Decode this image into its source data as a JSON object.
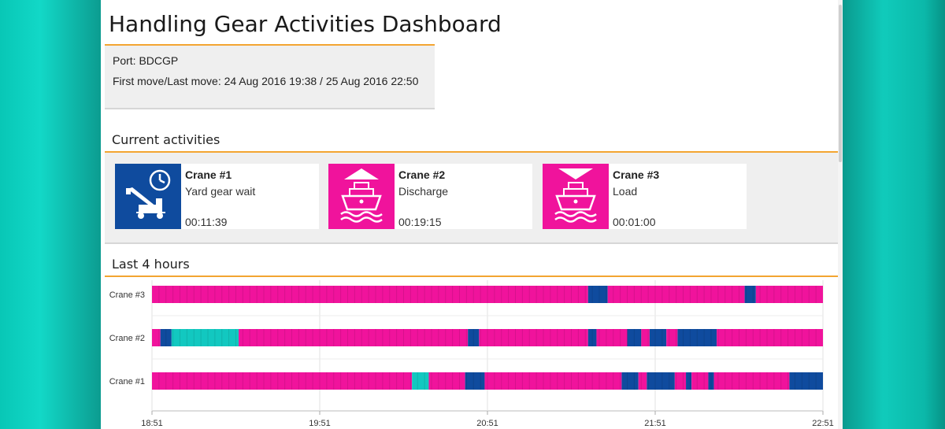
{
  "title": "Handling Gear Activities Dashboard",
  "port": {
    "line": "Port: BDCGP",
    "moves": "First move/Last move: 24 Aug 2016 19:38 / 25 Aug 2016 22:50"
  },
  "current": {
    "heading": "Current activities",
    "cards": [
      {
        "name": "Crane #1",
        "activity": "Yard gear wait",
        "elapsed": "00:11:39",
        "icon": "yard-gear-wait-icon",
        "color": "#0f4b9e"
      },
      {
        "name": "Crane #2",
        "activity": "Discharge",
        "elapsed": "00:19:15",
        "icon": "discharge-ship-icon",
        "color": "#f0139c"
      },
      {
        "name": "Crane #3",
        "activity": "Load",
        "elapsed": "00:01:00",
        "icon": "load-ship-icon",
        "color": "#f0139c"
      }
    ]
  },
  "history": {
    "heading": "Last 4 hours"
  },
  "colors": {
    "accent": "#f3a531",
    "load": "#f0139c",
    "wait": "#0f4b9e",
    "idle": "#12c8c0"
  },
  "chart_data": {
    "type": "bar",
    "orientation": "horizontal-timeline",
    "x_ticks": [
      "18:51",
      "19:51",
      "20:51",
      "21:51",
      "22:51"
    ],
    "xlim": [
      "18:51",
      "22:51"
    ],
    "grid": true,
    "rows": [
      {
        "label": "Crane #3",
        "segments": [
          {
            "start": "18:51",
            "end": "21:27",
            "kind": "load"
          },
          {
            "start": "21:27",
            "end": "21:34",
            "kind": "wait"
          },
          {
            "start": "21:34",
            "end": "22:23",
            "kind": "load"
          },
          {
            "start": "22:23",
            "end": "22:27",
            "kind": "wait"
          },
          {
            "start": "22:27",
            "end": "22:51",
            "kind": "load"
          }
        ]
      },
      {
        "label": "Crane #2",
        "segments": [
          {
            "start": "18:51",
            "end": "18:54",
            "kind": "load"
          },
          {
            "start": "18:54",
            "end": "18:58",
            "kind": "wait"
          },
          {
            "start": "18:58",
            "end": "19:22",
            "kind": "idle"
          },
          {
            "start": "19:22",
            "end": "20:44",
            "kind": "load"
          },
          {
            "start": "20:44",
            "end": "20:48",
            "kind": "wait"
          },
          {
            "start": "20:48",
            "end": "21:27",
            "kind": "load"
          },
          {
            "start": "21:27",
            "end": "21:30",
            "kind": "wait"
          },
          {
            "start": "21:30",
            "end": "21:41",
            "kind": "load"
          },
          {
            "start": "21:41",
            "end": "21:46",
            "kind": "wait"
          },
          {
            "start": "21:46",
            "end": "21:49",
            "kind": "load"
          },
          {
            "start": "21:49",
            "end": "21:55",
            "kind": "wait"
          },
          {
            "start": "21:55",
            "end": "21:59",
            "kind": "load"
          },
          {
            "start": "21:59",
            "end": "22:13",
            "kind": "wait"
          },
          {
            "start": "22:13",
            "end": "22:51",
            "kind": "load"
          }
        ]
      },
      {
        "label": "Crane #1",
        "segments": [
          {
            "start": "18:51",
            "end": "20:24",
            "kind": "load"
          },
          {
            "start": "20:24",
            "end": "20:30",
            "kind": "idle"
          },
          {
            "start": "20:30",
            "end": "20:43",
            "kind": "load"
          },
          {
            "start": "20:43",
            "end": "20:50",
            "kind": "wait"
          },
          {
            "start": "20:50",
            "end": "21:39",
            "kind": "load"
          },
          {
            "start": "21:39",
            "end": "21:45",
            "kind": "wait"
          },
          {
            "start": "21:45",
            "end": "21:48",
            "kind": "load"
          },
          {
            "start": "21:48",
            "end": "21:58",
            "kind": "wait"
          },
          {
            "start": "21:58",
            "end": "22:02",
            "kind": "load"
          },
          {
            "start": "22:02",
            "end": "22:04",
            "kind": "wait"
          },
          {
            "start": "22:04",
            "end": "22:10",
            "kind": "load"
          },
          {
            "start": "22:10",
            "end": "22:12",
            "kind": "wait"
          },
          {
            "start": "22:12",
            "end": "22:39",
            "kind": "load"
          },
          {
            "start": "22:39",
            "end": "22:51",
            "kind": "wait"
          }
        ]
      }
    ]
  }
}
